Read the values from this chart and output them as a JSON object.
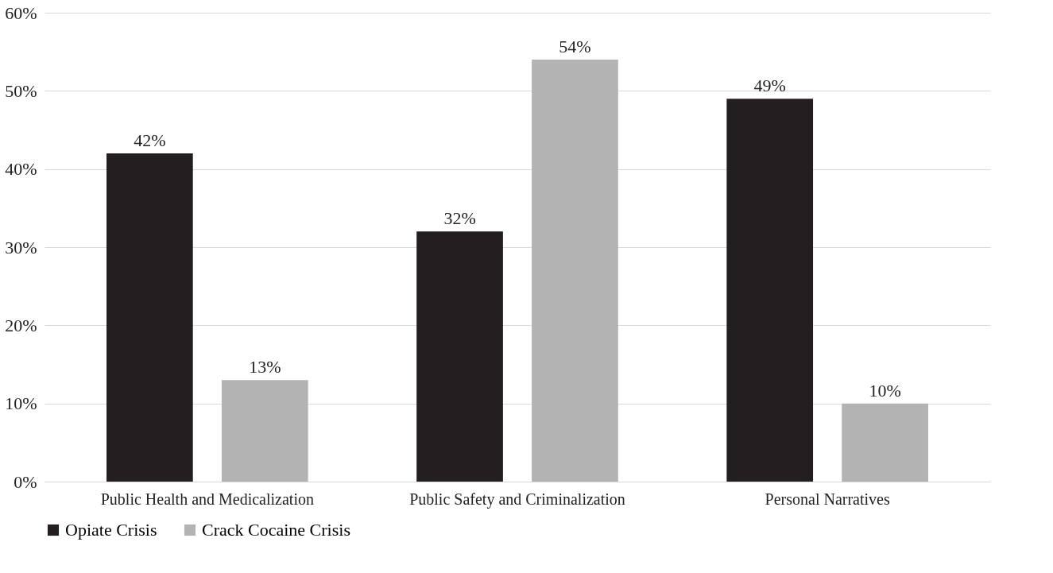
{
  "chart_data": {
    "type": "bar",
    "categories": [
      "Public Health and Medicalization",
      "Public Safety and Criminalization",
      "Personal Narratives"
    ],
    "series": [
      {
        "name": "Opiate Crisis",
        "color": "#231f20",
        "values": [
          42,
          32,
          49
        ],
        "value_labels": [
          "42%",
          "32%",
          "49%"
        ]
      },
      {
        "name": "Crack Cocaine Crisis",
        "color": "#b3b3b3",
        "values": [
          13,
          54,
          10
        ],
        "value_labels": [
          "13%",
          "54%",
          "10%"
        ]
      }
    ],
    "ylim": [
      0,
      60
    ],
    "yticks": [
      {
        "value": 0,
        "label": "0%"
      },
      {
        "value": 10,
        "label": "10%"
      },
      {
        "value": 20,
        "label": "20%"
      },
      {
        "value": 30,
        "label": "30%"
      },
      {
        "value": 40,
        "label": "40%"
      },
      {
        "value": 50,
        "label": "50%"
      },
      {
        "value": 60,
        "label": "60%"
      }
    ],
    "grid": "y",
    "legend": "bottom"
  }
}
